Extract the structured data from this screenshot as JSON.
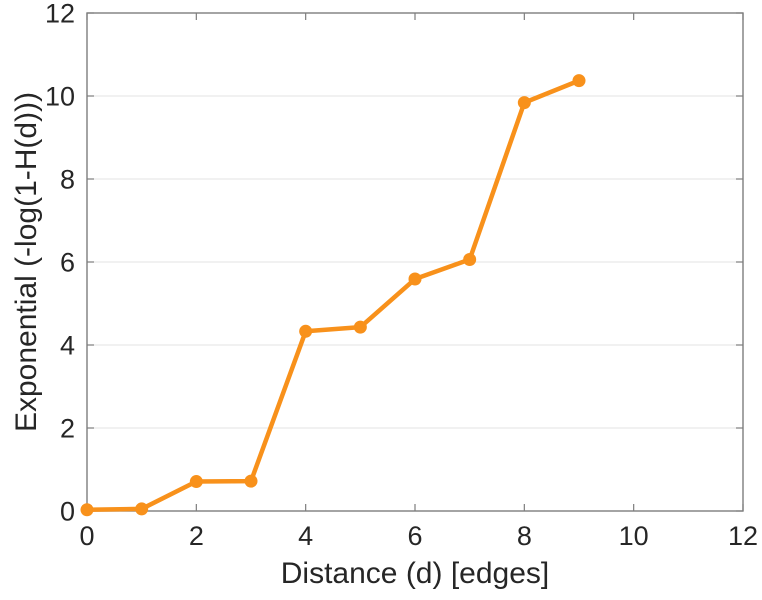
{
  "figure": {
    "background": "#ffffff"
  },
  "chart_data": {
    "type": "line",
    "title": "",
    "xlabel": "Distance (d) [edges]",
    "ylabel": "Exponential (-log(1-H(d)))",
    "x": [
      0,
      1,
      2,
      3,
      4,
      5,
      6,
      7,
      8,
      9
    ],
    "y": [
      0.03,
      0.05,
      0.71,
      0.72,
      4.33,
      4.43,
      5.59,
      6.06,
      9.84,
      10.37
    ],
    "xlim": [
      0,
      12
    ],
    "ylim": [
      0,
      12
    ],
    "xticks": [
      0,
      2,
      4,
      6,
      8,
      10,
      12
    ],
    "yticks": [
      0,
      2,
      4,
      6,
      8,
      10,
      12
    ],
    "xtick_labels": [
      "0",
      "2",
      "4",
      "6",
      "8",
      "10",
      "12"
    ],
    "ytick_labels": [
      "0",
      "2",
      "4",
      "6",
      "8",
      "10",
      "12"
    ],
    "grid": "horizontal-only",
    "legend_position": "none",
    "line_color": "#F8911B",
    "marker": "filled-circle",
    "marker_color": "#F8911B",
    "grid_color": "#E3E3E3",
    "axis_color": "#7D7D7D",
    "text_color": "#262626"
  }
}
